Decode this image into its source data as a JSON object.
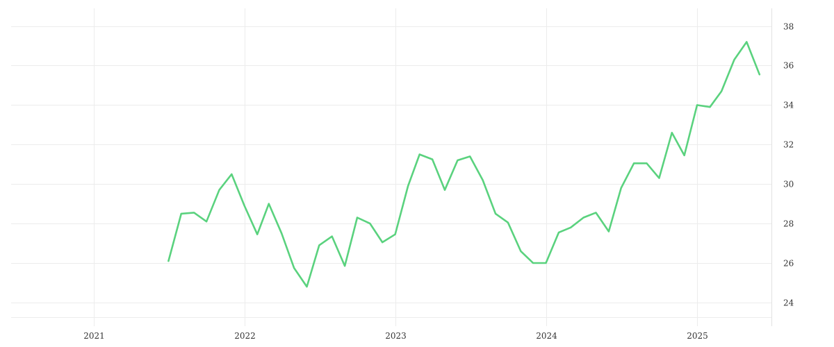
{
  "chart_data": {
    "type": "line",
    "title": "",
    "xlabel": "",
    "ylabel": "",
    "x_ticks": [
      "2021",
      "2022",
      "2023",
      "2024",
      "2025"
    ],
    "y_ticks": [
      24,
      26,
      28,
      30,
      32,
      34,
      36,
      38
    ],
    "xlim": [
      "2020-06-15",
      "2025-06-30"
    ],
    "ylim": [
      22.8,
      38.9
    ],
    "grid": true,
    "legend": "none",
    "series": [
      {
        "color": "#5ad27e",
        "points": [
          [
            "2021-07-01",
            26.1
          ],
          [
            "2021-08-01",
            28.5
          ],
          [
            "2021-09-01",
            28.55
          ],
          [
            "2021-10-01",
            28.1
          ],
          [
            "2021-11-01",
            29.7
          ],
          [
            "2021-12-01",
            30.5
          ],
          [
            "2022-01-01",
            28.9
          ],
          [
            "2022-02-01",
            27.45
          ],
          [
            "2022-03-01",
            29.0
          ],
          [
            "2022-04-01",
            27.5
          ],
          [
            "2022-05-01",
            25.75
          ],
          [
            "2022-06-01",
            24.8
          ],
          [
            "2022-07-01",
            26.9
          ],
          [
            "2022-08-01",
            27.35
          ],
          [
            "2022-09-01",
            25.85
          ],
          [
            "2022-10-01",
            28.3
          ],
          [
            "2022-11-01",
            28.0
          ],
          [
            "2022-12-01",
            27.05
          ],
          [
            "2023-01-01",
            27.45
          ],
          [
            "2023-02-01",
            29.9
          ],
          [
            "2023-03-01",
            31.5
          ],
          [
            "2023-04-01",
            31.25
          ],
          [
            "2023-05-01",
            29.7
          ],
          [
            "2023-06-01",
            31.2
          ],
          [
            "2023-07-01",
            31.4
          ],
          [
            "2023-08-01",
            30.2
          ],
          [
            "2023-09-01",
            28.5
          ],
          [
            "2023-10-01",
            28.05
          ],
          [
            "2023-11-01",
            26.6
          ],
          [
            "2023-12-01",
            26.0
          ],
          [
            "2024-01-01",
            26.0
          ],
          [
            "2024-02-01",
            27.55
          ],
          [
            "2024-03-01",
            27.8
          ],
          [
            "2024-04-01",
            28.3
          ],
          [
            "2024-05-01",
            28.55
          ],
          [
            "2024-06-01",
            27.6
          ],
          [
            "2024-07-01",
            29.8
          ],
          [
            "2024-08-01",
            31.05
          ],
          [
            "2024-09-01",
            31.05
          ],
          [
            "2024-10-01",
            30.3
          ],
          [
            "2024-11-01",
            32.6
          ],
          [
            "2024-12-01",
            31.45
          ],
          [
            "2025-01-01",
            34.0
          ],
          [
            "2025-02-01",
            33.9
          ],
          [
            "2025-03-01",
            34.7
          ],
          [
            "2025-04-01",
            36.3
          ],
          [
            "2025-05-01",
            37.2
          ],
          [
            "2025-06-01",
            35.55
          ]
        ]
      }
    ]
  }
}
